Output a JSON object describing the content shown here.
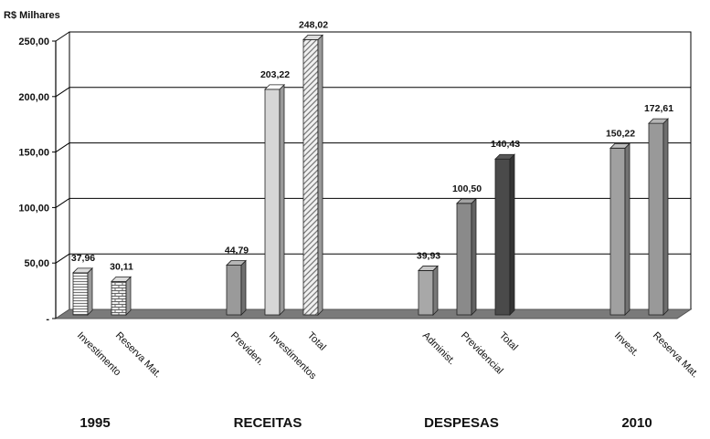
{
  "chart_data": {
    "type": "bar",
    "unit_label": "R$ Milhares",
    "ylim": [
      0,
      250
    ],
    "yticks": [
      {
        "value": 0,
        "label": "-"
      },
      {
        "value": 50,
        "label": "50,00"
      },
      {
        "value": 100,
        "label": "100,00"
      },
      {
        "value": 150,
        "label": "150,00"
      },
      {
        "value": 200,
        "label": "200,00"
      },
      {
        "value": 250,
        "label": "250,00"
      }
    ],
    "grid": true,
    "groups": [
      {
        "label": "1995",
        "bars": [
          {
            "category": "Investimento",
            "value": 37.96,
            "value_label": "37,96",
            "fill": "pattern-hlines"
          },
          {
            "category": "Reserva Mat.",
            "value": 30.11,
            "value_label": "30,11",
            "fill": "pattern-bricks"
          }
        ]
      },
      {
        "label": "RECEITAS",
        "bars": [
          {
            "category": "Previden.",
            "value": 44.79,
            "value_label": "44,79",
            "fill": "#9a9a9a"
          },
          {
            "category": "Investimentos",
            "value": 203.22,
            "value_label": "203,22",
            "fill": "#d6d6d6"
          },
          {
            "category": "Total",
            "value": 248.02,
            "value_label": "248,02",
            "fill": "pattern-diagonal"
          }
        ]
      },
      {
        "label": "DESPESAS",
        "bars": [
          {
            "category": "Administ.",
            "value": 39.93,
            "value_label": "39,93",
            "fill": "#a8a8a8"
          },
          {
            "category": "Previdencial",
            "value": 100.5,
            "value_label": "100,50",
            "fill": "#8a8a8a"
          },
          {
            "category": "Total",
            "value": 140.43,
            "value_label": "140,43",
            "fill": "#4a4a4a"
          }
        ]
      },
      {
        "label": "2010",
        "bars": [
          {
            "category": "Invest.",
            "value": 150.22,
            "value_label": "150,22",
            "fill": "#a0a0a0"
          },
          {
            "category": "Reserva Mat.",
            "value": 172.61,
            "value_label": "172,61",
            "fill": "#999999"
          }
        ]
      }
    ],
    "colors": {
      "floor": "#7a7a7a",
      "grid": "#000000",
      "bar_outline": "#222222"
    }
  }
}
